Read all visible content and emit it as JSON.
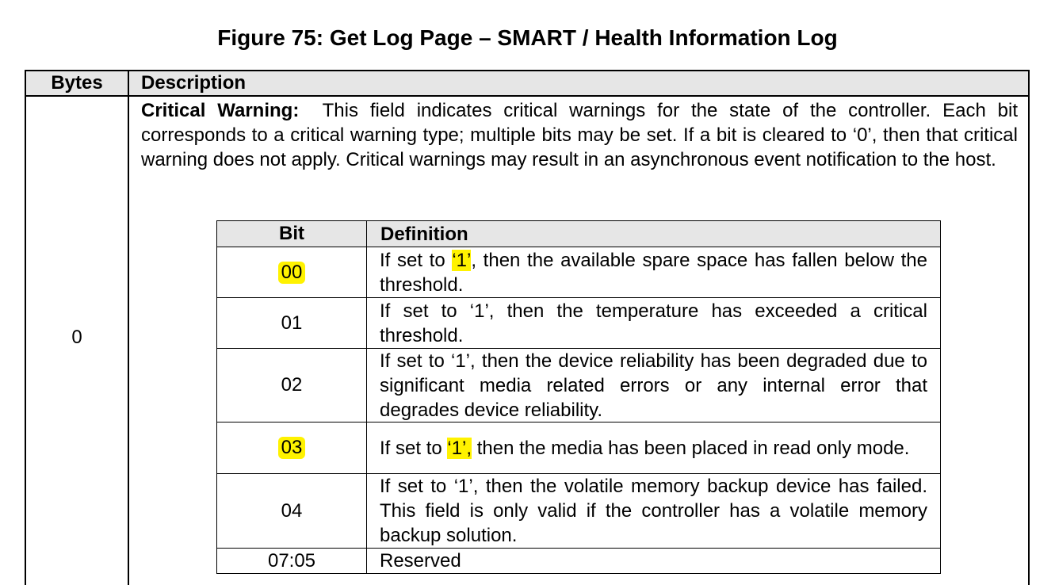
{
  "title": "Figure 75: Get Log Page – SMART / Health Information Log",
  "table": {
    "headers": {
      "bytes": "Bytes",
      "description": "Description"
    },
    "row": {
      "bytes": "0",
      "field_name": "Critical Warning:",
      "field_text": "This field indicates critical warnings for the state of the controller.  Each bit corresponds to a critical warning type; multiple bits may be set.  If a bit is cleared to ‘0’, then that critical warning does not apply.  Critical warnings may result in an asynchronous event notification to the host."
    }
  },
  "bit_table": {
    "headers": {
      "bit": "Bit",
      "definition": "Definition"
    },
    "highlight_color": "#fff200",
    "rows": [
      {
        "bit": "00",
        "highlighted": true,
        "pre": "If set to ",
        "hl": "‘1’",
        "post": ", then the available spare space has fallen below the threshold."
      },
      {
        "bit": "01",
        "highlighted": false,
        "pre": "If set to ‘1’, then the temperature has exceeded a critical threshold.",
        "hl": "",
        "post": ""
      },
      {
        "bit": "02",
        "highlighted": false,
        "pre": "If set to ‘1’, then the device reliability has been degraded due to significant media related errors or any internal error that degrades device reliability.",
        "hl": "",
        "post": ""
      },
      {
        "bit": "03",
        "highlighted": true,
        "pre": "If set to ",
        "hl": "‘1’,",
        "post": " then the media has been placed in read only mode."
      },
      {
        "bit": "04",
        "highlighted": false,
        "pre": "If set to ‘1’, then the volatile memory backup device has failed.  This field is only valid if the controller has a volatile memory backup solution.",
        "hl": "",
        "post": ""
      },
      {
        "bit": "07:05",
        "highlighted": false,
        "pre": "Reserved",
        "hl": "",
        "post": ""
      }
    ]
  }
}
